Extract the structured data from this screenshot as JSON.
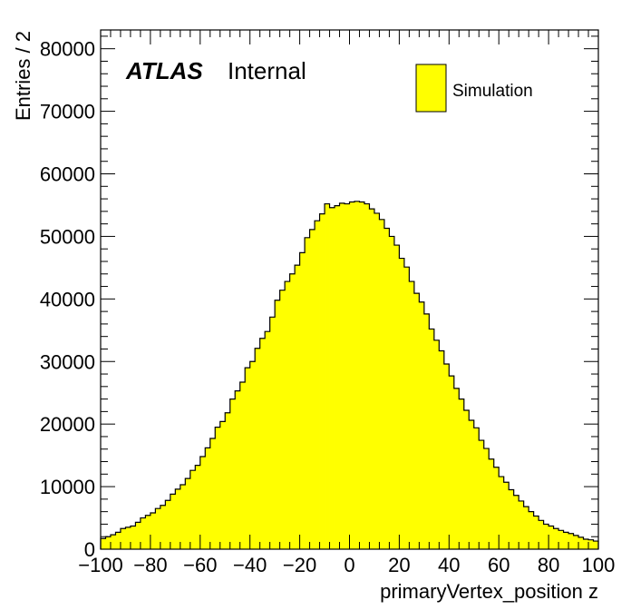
{
  "label": {
    "experiment": "ATLAS",
    "status": "Internal"
  },
  "colors": {
    "fill": "#ffff00",
    "line": "#000000",
    "frame": "#000000",
    "background": "#ffffff"
  },
  "chart_data": {
    "type": "histogram",
    "title": "",
    "xlabel": "primaryVertex_position z",
    "ylabel": "Entries / 2",
    "xlim": [
      -100,
      100
    ],
    "ylim": [
      0,
      83000
    ],
    "grid": false,
    "legend": {
      "position": "top-right",
      "entries": [
        "Simulation"
      ]
    },
    "x_ticks": [
      -100,
      -80,
      -60,
      -40,
      -20,
      0,
      20,
      40,
      60,
      80,
      100
    ],
    "x_tick_labels": [
      "−100",
      "−80",
      "−60",
      "−40",
      "−20",
      "0",
      "20",
      "40",
      "60",
      "80",
      "100"
    ],
    "y_ticks": [
      0,
      10000,
      20000,
      30000,
      40000,
      50000,
      60000,
      70000,
      80000
    ],
    "y_tick_labels": [
      "0",
      "10000",
      "20000",
      "30000",
      "40000",
      "50000",
      "60000",
      "70000",
      "80000"
    ],
    "bin_width": 2,
    "series": [
      {
        "name": "Simulation",
        "bin_low_edges": [
          -100,
          -98,
          -96,
          -94,
          -92,
          -90,
          -88,
          -86,
          -84,
          -82,
          -80,
          -78,
          -76,
          -74,
          -72,
          -70,
          -68,
          -66,
          -64,
          -62,
          -60,
          -58,
          -56,
          -54,
          -52,
          -50,
          -48,
          -46,
          -44,
          -42,
          -40,
          -38,
          -36,
          -34,
          -32,
          -30,
          -28,
          -26,
          -24,
          -22,
          -20,
          -18,
          -16,
          -14,
          -12,
          -10,
          -8,
          -6,
          -4,
          -2,
          0,
          2,
          4,
          6,
          8,
          10,
          12,
          14,
          16,
          18,
          20,
          22,
          24,
          26,
          28,
          30,
          32,
          34,
          36,
          38,
          40,
          42,
          44,
          46,
          48,
          50,
          52,
          54,
          56,
          58,
          60,
          62,
          64,
          66,
          68,
          70,
          72,
          74,
          76,
          78,
          80,
          82,
          84,
          86,
          88,
          90,
          92,
          94,
          96,
          98
        ],
        "values": [
          1700,
          2000,
          2300,
          2700,
          3300,
          3500,
          3700,
          4300,
          5000,
          5400,
          5800,
          6500,
          7000,
          7800,
          8800,
          9600,
          10300,
          11300,
          12600,
          13400,
          14800,
          16200,
          17700,
          19500,
          20400,
          21800,
          24000,
          25300,
          26700,
          29000,
          30000,
          32100,
          33700,
          34800,
          37100,
          39800,
          41400,
          42800,
          44000,
          45400,
          47400,
          49800,
          51100,
          52500,
          53600,
          55200,
          54600,
          54900,
          55300,
          55200,
          55500,
          55600,
          55500,
          55200,
          54400,
          53700,
          52700,
          51300,
          50000,
          48600,
          46500,
          45100,
          42800,
          40900,
          39500,
          37600,
          35200,
          33400,
          31700,
          29600,
          27700,
          25700,
          24000,
          22200,
          20600,
          19400,
          17400,
          16100,
          14400,
          13100,
          11600,
          10700,
          9500,
          8600,
          7700,
          6800,
          6000,
          5300,
          4600,
          4000,
          3700,
          3300,
          3000,
          2700,
          2500,
          2200,
          1900,
          1600,
          1500,
          1300
        ]
      }
    ]
  }
}
